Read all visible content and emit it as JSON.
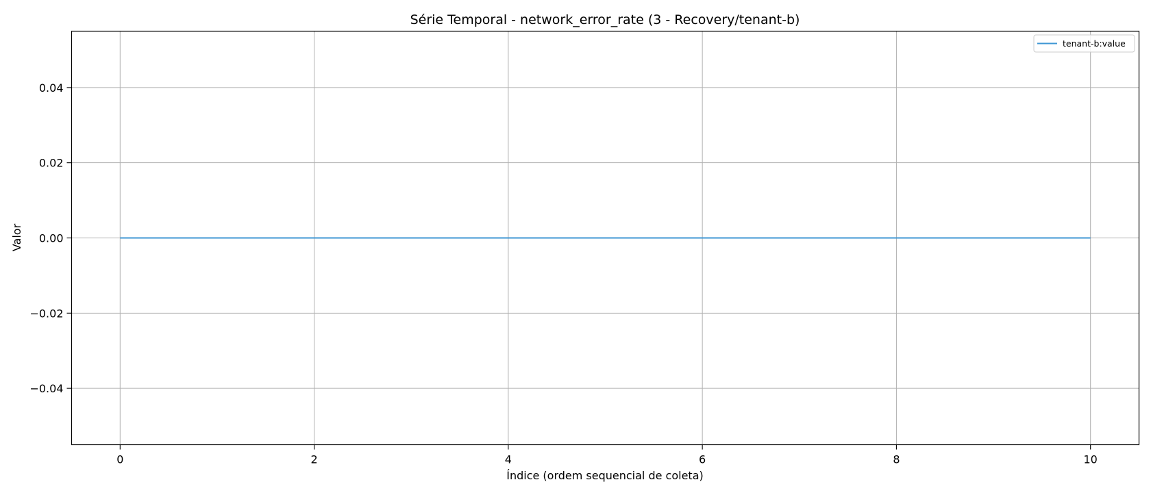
{
  "chart_data": {
    "type": "line",
    "title": "Série Temporal - network_error_rate (3 - Recovery/tenant-b)",
    "xlabel": "Índice (ordem sequencial de coleta)",
    "ylabel": "Valor",
    "xlim": [
      -0.5,
      10.5
    ],
    "ylim": [
      -0.055,
      0.055
    ],
    "xticks": [
      0,
      2,
      4,
      6,
      8,
      10
    ],
    "xtick_labels": [
      "0",
      "2",
      "4",
      "6",
      "8",
      "10"
    ],
    "yticks": [
      -0.04,
      -0.02,
      0.0,
      0.02,
      0.04
    ],
    "ytick_labels": [
      "−0.04",
      "−0.02",
      "0.00",
      "0.02",
      "0.04"
    ],
    "grid": true,
    "legend_position": "top-right",
    "series": [
      {
        "name": "tenant-b:value",
        "color": "#3f97d4",
        "x": [
          0,
          1,
          2,
          3,
          4,
          5,
          6,
          7,
          8,
          9,
          10
        ],
        "y": [
          0,
          0,
          0,
          0,
          0,
          0,
          0,
          0,
          0,
          0,
          0
        ]
      }
    ]
  }
}
